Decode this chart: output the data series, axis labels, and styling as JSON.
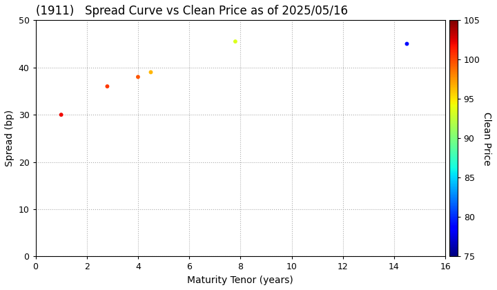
{
  "title": "(1911)   Spread Curve vs Clean Price as of 2025/05/16",
  "xlabel": "Maturity Tenor (years)",
  "ylabel": "Spread (bp)",
  "colorbar_label": "Clean Price",
  "points": [
    {
      "tenor": 1.0,
      "spread": 30.0,
      "price": 102.0
    },
    {
      "tenor": 2.8,
      "spread": 36.0,
      "price": 100.5
    },
    {
      "tenor": 4.0,
      "spread": 38.0,
      "price": 99.5
    },
    {
      "tenor": 4.5,
      "spread": 39.0,
      "price": 96.5
    },
    {
      "tenor": 7.8,
      "spread": 45.5,
      "price": 93.5
    },
    {
      "tenor": 14.5,
      "spread": 45.0,
      "price": 79.0
    }
  ],
  "price_min": 75,
  "price_max": 105,
  "xlim": [
    0,
    16
  ],
  "ylim": [
    0,
    50
  ],
  "xticks": [
    0,
    2,
    4,
    6,
    8,
    10,
    12,
    14,
    16
  ],
  "yticks": [
    0,
    10,
    20,
    30,
    40,
    50
  ],
  "colorbar_ticks": [
    75,
    80,
    85,
    90,
    95,
    100,
    105
  ],
  "marker_size": 18,
  "background_color": "#ffffff",
  "grid_color": "#aaaaaa",
  "title_fontsize": 12,
  "label_fontsize": 10,
  "tick_fontsize": 9,
  "cbar_tick_fontsize": 9,
  "cbar_label_fontsize": 10
}
